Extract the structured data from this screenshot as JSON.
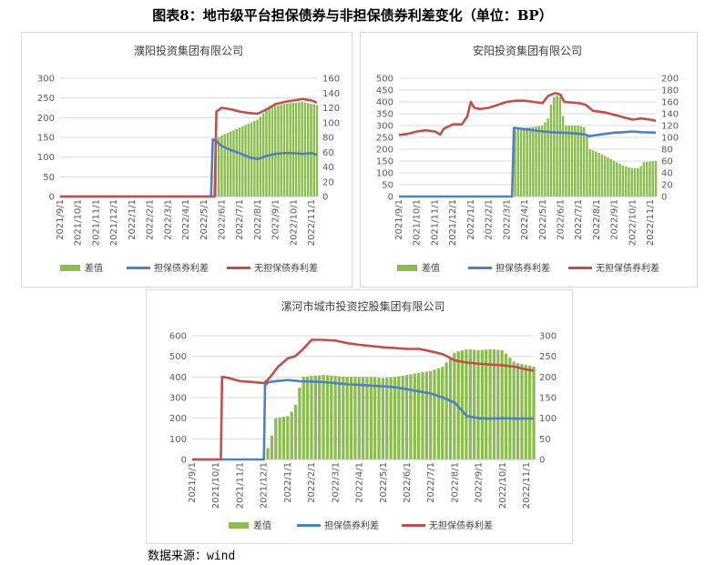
{
  "figure_title": "图表8：地市级平台担保债券与非担保债券利差变化（单位：BP）",
  "source_note": "数据来源：wind",
  "colors": {
    "spread": "#8cbc4f",
    "guaranteed": "#4f81bd",
    "unguaranteed": "#c0504d",
    "grid": "#d9d9d9"
  },
  "chart_data": [
    {
      "type": "line+bar",
      "title": "濮阳投资集团有限公司",
      "categories": [
        "2021/9/1",
        "2021/10/1",
        "2021/11/1",
        "2021/12/1",
        "2022/1/1",
        "2022/2/1",
        "2022/3/1",
        "2022/4/1",
        "2022/5/1",
        "2022/6/1",
        "2022/7/1",
        "2022/8/1",
        "2022/9/1",
        "2022/10/1",
        "2022/11/1"
      ],
      "y_left": {
        "ticks": [
          "0",
          "50",
          "100",
          "150",
          "200",
          "250",
          "300"
        ],
        "lim": [
          0,
          300
        ]
      },
      "y_right": {
        "ticks": [
          "0",
          "20",
          "40",
          "60",
          "80",
          "100",
          "120",
          "140",
          "160"
        ],
        "lim": [
          0,
          160
        ]
      },
      "legend": [
        "差值",
        "担保债券利差",
        "无担保债券利差"
      ],
      "series": [
        {
          "name": "差值",
          "axis": "left",
          "kind": "bar",
          "points": [
            [
              8.5,
              0
            ],
            [
              8.6,
              145
            ],
            [
              9.0,
              155
            ],
            [
              9.5,
              165
            ],
            [
              10.0,
              175
            ],
            [
              10.5,
              185
            ],
            [
              11.0,
              195
            ],
            [
              11.5,
              220
            ],
            [
              12.0,
              230
            ],
            [
              12.5,
              235
            ],
            [
              13.0,
              238
            ],
            [
              13.5,
              240
            ],
            [
              14.0,
              235
            ],
            [
              14.3,
              232
            ]
          ]
        },
        {
          "name": "担保债券利差",
          "axis": "left",
          "points": [
            [
              0,
              0
            ],
            [
              8.4,
              0
            ],
            [
              8.5,
              145
            ],
            [
              8.7,
              140
            ],
            [
              9.0,
              128
            ],
            [
              9.5,
              118
            ],
            [
              10.0,
              110
            ],
            [
              10.5,
              100
            ],
            [
              11.0,
              95
            ],
            [
              11.5,
              103
            ],
            [
              12.0,
              108
            ],
            [
              12.5,
              110
            ],
            [
              13.0,
              110
            ],
            [
              13.5,
              108
            ],
            [
              14.0,
              110
            ],
            [
              14.3,
              106
            ]
          ]
        },
        {
          "name": "无担保债券利差",
          "axis": "right",
          "points": [
            [
              0,
              0
            ],
            [
              8.6,
              0
            ],
            [
              8.7,
              115
            ],
            [
              9.0,
              120
            ],
            [
              9.5,
              118
            ],
            [
              10.0,
              115
            ],
            [
              10.5,
              113
            ],
            [
              11.0,
              112
            ],
            [
              11.5,
              118
            ],
            [
              12.0,
              125
            ],
            [
              12.5,
              128
            ],
            [
              13.0,
              130
            ],
            [
              13.5,
              132
            ],
            [
              14.0,
              130
            ],
            [
              14.3,
              127
            ]
          ]
        }
      ]
    },
    {
      "type": "line+bar",
      "title": "安阳投资集团有限公司",
      "categories": [
        "2021/9/1",
        "2021/10/1",
        "2021/11/1",
        "2021/12/1",
        "2022/1/1",
        "2022/2/1",
        "2022/3/1",
        "2022/4/1",
        "2022/5/1",
        "2022/6/1",
        "2022/7/1",
        "2022/8/1",
        "2022/9/1",
        "2022/10/1",
        "2022/11/1"
      ],
      "y_left": {
        "ticks": [
          "0",
          "50",
          "100",
          "150",
          "200",
          "250",
          "300",
          "350",
          "400",
          "450",
          "500"
        ],
        "lim": [
          0,
          500
        ]
      },
      "y_right": {
        "ticks": [
          "0",
          "20",
          "40",
          "60",
          "80",
          "100",
          "120",
          "140",
          "160",
          "180",
          "200"
        ],
        "lim": [
          0,
          200
        ]
      },
      "legend": [
        "差值",
        "担保债券利差",
        "无担保债券利差"
      ],
      "series": [
        {
          "name": "差值",
          "axis": "left",
          "kind": "bar",
          "points": [
            [
              6.3,
              0
            ],
            [
              6.4,
              280
            ],
            [
              7.0,
              290
            ],
            [
              7.5,
              295
            ],
            [
              8.0,
              300
            ],
            [
              8.3,
              330
            ],
            [
              8.5,
              400
            ],
            [
              8.7,
              430
            ],
            [
              9.0,
              420
            ],
            [
              9.2,
              300
            ],
            [
              10.0,
              300
            ],
            [
              10.4,
              290
            ],
            [
              10.6,
              200
            ],
            [
              11.0,
              190
            ],
            [
              11.5,
              170
            ],
            [
              12.0,
              150
            ],
            [
              12.5,
              130
            ],
            [
              13.0,
              120
            ],
            [
              13.4,
              120
            ],
            [
              13.6,
              145
            ],
            [
              14.3,
              150
            ]
          ]
        },
        {
          "name": "担保债券利差",
          "axis": "left",
          "points": [
            [
              0,
              0
            ],
            [
              6.3,
              0
            ],
            [
              6.4,
              290
            ],
            [
              7.0,
              285
            ],
            [
              7.5,
              280
            ],
            [
              8.0,
              275
            ],
            [
              8.5,
              272
            ],
            [
              9.0,
              270
            ],
            [
              9.5,
              268
            ],
            [
              10.0,
              265
            ],
            [
              10.4,
              262
            ],
            [
              10.6,
              255
            ],
            [
              11.0,
              260
            ],
            [
              11.5,
              265
            ],
            [
              12.0,
              270
            ],
            [
              12.5,
              272
            ],
            [
              13.0,
              275
            ],
            [
              13.5,
              272
            ],
            [
              14.3,
              270
            ]
          ]
        },
        {
          "name": "无担保债券利差",
          "axis": "right",
          "points": [
            [
              0,
              104
            ],
            [
              0.5,
              106
            ],
            [
              1.0,
              110
            ],
            [
              1.5,
              112
            ],
            [
              2.0,
              110
            ],
            [
              2.3,
              105
            ],
            [
              2.5,
              115
            ],
            [
              3.0,
              122
            ],
            [
              3.5,
              122
            ],
            [
              3.8,
              135
            ],
            [
              4.0,
              160
            ],
            [
              4.2,
              150
            ],
            [
              4.5,
              148
            ],
            [
              5.0,
              150
            ],
            [
              5.5,
              155
            ],
            [
              6.0,
              160
            ],
            [
              6.5,
              162
            ],
            [
              7.0,
              162
            ],
            [
              7.5,
              160
            ],
            [
              8.0,
              158
            ],
            [
              8.3,
              170
            ],
            [
              8.7,
              175
            ],
            [
              9.0,
              172
            ],
            [
              9.2,
              160
            ],
            [
              10.0,
              158
            ],
            [
              10.4,
              155
            ],
            [
              10.8,
              145
            ],
            [
              11.5,
              142
            ],
            [
              12.0,
              138
            ],
            [
              12.5,
              134
            ],
            [
              13.0,
              130
            ],
            [
              13.5,
              132
            ],
            [
              14.0,
              130
            ],
            [
              14.3,
              128
            ]
          ]
        }
      ]
    },
    {
      "type": "line+bar",
      "title": "漯河市城市投资控股集团有限公司",
      "categories": [
        "2021/9/1",
        "2021/10/1",
        "2021/11/1",
        "2021/12/1",
        "2022/1/1",
        "2022/2/1",
        "2022/3/1",
        "2022/4/1",
        "2022/5/1",
        "2022/6/1",
        "2022/7/1",
        "2022/8/1",
        "2022/9/1",
        "2022/10/1",
        "2022/11/1"
      ],
      "y_left": {
        "ticks": [
          "0",
          "100",
          "200",
          "300",
          "400",
          "500",
          "600"
        ],
        "lim": [
          0,
          600
        ]
      },
      "y_right": {
        "ticks": [
          "0",
          "50",
          "100",
          "150",
          "200",
          "250",
          "300"
        ],
        "lim": [
          0,
          300
        ]
      },
      "legend": [
        "差值",
        "担保债券利差",
        "无担保债券利差"
      ],
      "series": [
        {
          "name": "差值",
          "axis": "left",
          "kind": "bar",
          "points": [
            [
              3.0,
              0
            ],
            [
              3.3,
              100
            ],
            [
              3.5,
              200
            ],
            [
              4.0,
              210
            ],
            [
              4.3,
              250
            ],
            [
              4.6,
              400
            ],
            [
              5.0,
              405
            ],
            [
              5.5,
              410
            ],
            [
              6.0,
              405
            ],
            [
              6.5,
              400
            ],
            [
              7.0,
              400
            ],
            [
              7.5,
              400
            ],
            [
              8.0,
              395
            ],
            [
              8.5,
              400
            ],
            [
              9.0,
              410
            ],
            [
              9.5,
              420
            ],
            [
              10.0,
              430
            ],
            [
              10.5,
              450
            ],
            [
              11.0,
              520
            ],
            [
              11.5,
              535
            ],
            [
              12.0,
              530
            ],
            [
              12.5,
              535
            ],
            [
              13.0,
              530
            ],
            [
              13.5,
              470
            ],
            [
              14.3,
              450
            ]
          ]
        },
        {
          "name": "担保债券利差",
          "axis": "left",
          "points": [
            [
              0,
              0
            ],
            [
              3.0,
              0
            ],
            [
              3.05,
              360
            ],
            [
              3.2,
              375
            ],
            [
              3.5,
              380
            ],
            [
              4.0,
              385
            ],
            [
              4.5,
              380
            ],
            [
              5.0,
              378
            ],
            [
              5.5,
              375
            ],
            [
              6.0,
              370
            ],
            [
              6.5,
              365
            ],
            [
              7.0,
              362
            ],
            [
              7.5,
              358
            ],
            [
              8.0,
              355
            ],
            [
              8.5,
              350
            ],
            [
              9.0,
              340
            ],
            [
              9.5,
              330
            ],
            [
              10.0,
              320
            ],
            [
              10.5,
              300
            ],
            [
              11.0,
              275
            ],
            [
              11.5,
              210
            ],
            [
              12.0,
              200
            ],
            [
              12.5,
              198
            ],
            [
              13.0,
              200
            ],
            [
              13.5,
              198
            ],
            [
              14.3,
              198
            ]
          ]
        },
        {
          "name": "无担保债券利差",
          "axis": "right",
          "points": [
            [
              0,
              0
            ],
            [
              1.2,
              0
            ],
            [
              1.25,
              200
            ],
            [
              1.5,
              198
            ],
            [
              2.0,
              190
            ],
            [
              2.5,
              188
            ],
            [
              3.0,
              185
            ],
            [
              3.2,
              195
            ],
            [
              3.4,
              210
            ],
            [
              3.6,
              225
            ],
            [
              3.8,
              235
            ],
            [
              4.0,
              245
            ],
            [
              4.3,
              250
            ],
            [
              4.6,
              265
            ],
            [
              5.0,
              290
            ],
            [
              5.5,
              290
            ],
            [
              6.0,
              288
            ],
            [
              6.5,
              282
            ],
            [
              7.0,
              278
            ],
            [
              7.5,
              275
            ],
            [
              8.0,
              272
            ],
            [
              8.5,
              270
            ],
            [
              9.0,
              268
            ],
            [
              9.5,
              268
            ],
            [
              10.0,
              262
            ],
            [
              10.5,
              255
            ],
            [
              11.0,
              240
            ],
            [
              11.5,
              235
            ],
            [
              12.0,
              232
            ],
            [
              12.5,
              230
            ],
            [
              13.0,
              228
            ],
            [
              13.5,
              225
            ],
            [
              14.0,
              218
            ],
            [
              14.3,
              215
            ]
          ]
        }
      ]
    }
  ]
}
